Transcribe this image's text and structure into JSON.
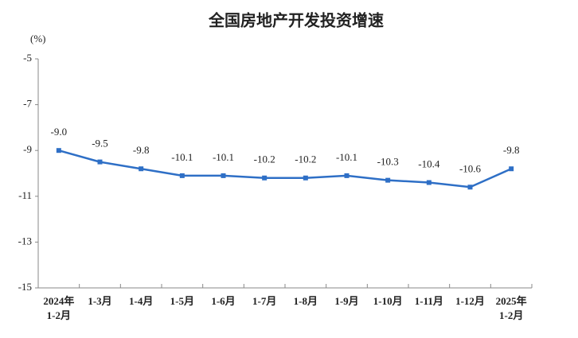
{
  "chart_data": {
    "type": "line",
    "title": "全国房地产开发投资增速",
    "y_axis_label": "(%)",
    "categories": [
      "2024年\n1-2月",
      "1-3月",
      "1-4月",
      "1-5月",
      "1-6月",
      "1-7月",
      "1-8月",
      "1-9月",
      "1-10月",
      "1-11月",
      "1-12月",
      "2025年\n1-2月"
    ],
    "series": [
      {
        "name": "全国房地产开发投资增速",
        "color": "#2e6fc6",
        "values": [
          -9.0,
          -9.5,
          -9.8,
          -10.1,
          -10.1,
          -10.2,
          -10.2,
          -10.1,
          -10.3,
          -10.4,
          -10.6,
          -9.8
        ],
        "value_labels": [
          "-9.0",
          "-9.5",
          "-9.8",
          "-10.1",
          "-10.1",
          "-10.2",
          "-10.2",
          "-10.1",
          "-10.3",
          "-10.4",
          "-10.6",
          "-9.8"
        ]
      }
    ],
    "ylim": [
      -15,
      -5
    ],
    "yticks": [
      -5,
      -7,
      -9,
      -11,
      -13,
      -15
    ],
    "grid": false
  }
}
